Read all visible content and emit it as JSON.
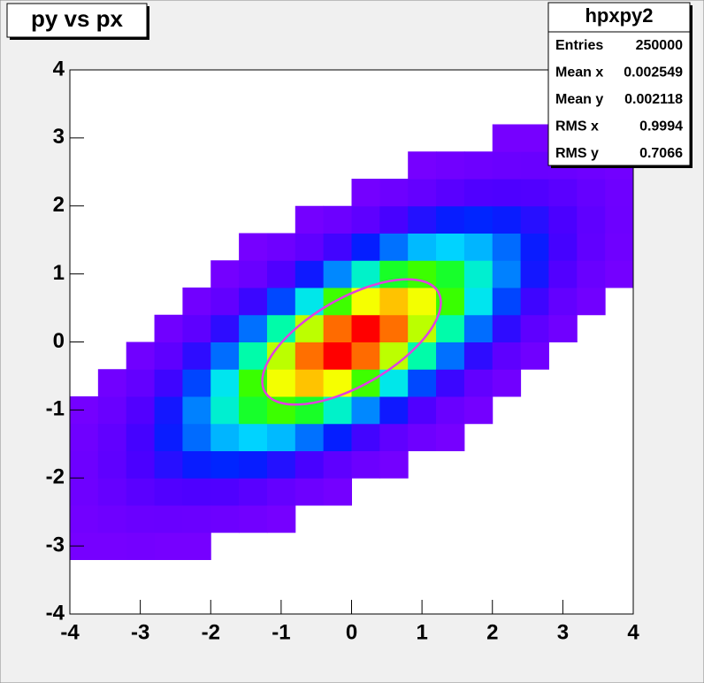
{
  "chart_data": {
    "type": "heatmap",
    "title": "py vs px",
    "xbins": [
      -4,
      -3.6,
      -3.2,
      -2.8,
      -2.4,
      -2,
      -1.6,
      -1.2,
      -0.8,
      -0.4,
      0,
      0.4,
      0.8,
      1.2,
      1.6,
      2,
      2.4,
      2.8,
      3.2,
      3.6,
      4
    ],
    "ybins": [
      -4,
      -3.6,
      -3.2,
      -2.8,
      -2.4,
      -2,
      -1.6,
      -1.2,
      -0.8,
      -0.4,
      0,
      0.4,
      0.8,
      1.2,
      1.6,
      2,
      2.4,
      2.8,
      3.2,
      3.6,
      4
    ],
    "z": [
      [
        0,
        0,
        1,
        3,
        8,
        9,
        6,
        2,
        0,
        0,
        0,
        0,
        0,
        0,
        0,
        0,
        0,
        0,
        0,
        0
      ],
      [
        0,
        0,
        1,
        8,
        24,
        38,
        32,
        15,
        4,
        0,
        0,
        0,
        0,
        0,
        0,
        0,
        0,
        0,
        0,
        0
      ],
      [
        0,
        0,
        2,
        13,
        53,
        118,
        137,
        86,
        29,
        5,
        0,
        0,
        0,
        0,
        0,
        0,
        0,
        0,
        0,
        0
      ],
      [
        0,
        0,
        1,
        16,
        88,
        263,
        421,
        361,
        164,
        40,
        5,
        0,
        0,
        0,
        0,
        0,
        0,
        0,
        0,
        0
      ],
      [
        0,
        0,
        1,
        14,
        104,
        427,
        940,
        1100,
        690,
        230,
        41,
        4,
        0,
        0,
        0,
        0,
        0,
        0,
        0,
        0
      ],
      [
        0,
        0,
        0,
        9,
        92,
        512,
        1530,
        2450,
        2100,
        952,
        232,
        30,
        2,
        0,
        0,
        0,
        0,
        0,
        0,
        0
      ],
      [
        0,
        0,
        0,
        4,
        58,
        441,
        1810,
        3980,
        4650,
        2900,
        970,
        175,
        16,
        1,
        0,
        0,
        0,
        0,
        0,
        0
      ],
      [
        0,
        0,
        0,
        1,
        26,
        282,
        1570,
        4680,
        7500,
        6420,
        2910,
        710,
        93,
        7,
        0,
        0,
        0,
        0,
        0,
        0
      ],
      [
        0,
        0,
        0,
        0,
        9,
        128,
        980,
        4010,
        8840,
        10310,
        6440,
        2160,
        390,
        36,
        2,
        0,
        0,
        0,
        0,
        0
      ],
      [
        0,
        0,
        0,
        0,
        2,
        42,
        455,
        2530,
        7560,
        12110,
        10380,
        4710,
        1150,
        150,
        10,
        0,
        0,
        0,
        0,
        0
      ],
      [
        0,
        0,
        0,
        0,
        0,
        10,
        150,
        1150,
        4710,
        10380,
        12110,
        7560,
        2530,
        455,
        42,
        2,
        0,
        0,
        0,
        0
      ],
      [
        0,
        0,
        0,
        0,
        0,
        2,
        36,
        390,
        2160,
        6440,
        10310,
        8840,
        4010,
        980,
        128,
        9,
        0,
        0,
        0,
        0
      ],
      [
        0,
        0,
        0,
        0,
        0,
        0,
        7,
        93,
        710,
        2910,
        6420,
        7500,
        4680,
        1570,
        282,
        26,
        1,
        0,
        0,
        0
      ],
      [
        0,
        0,
        0,
        0,
        0,
        0,
        1,
        16,
        175,
        970,
        2900,
        4650,
        3980,
        1810,
        441,
        58,
        4,
        0,
        0,
        0
      ],
      [
        0,
        0,
        0,
        0,
        0,
        0,
        0,
        2,
        30,
        232,
        952,
        2100,
        2450,
        1530,
        512,
        92,
        9,
        0,
        0,
        0
      ],
      [
        0,
        0,
        0,
        0,
        0,
        0,
        0,
        0,
        4,
        41,
        230,
        690,
        1100,
        940,
        427,
        104,
        14,
        1,
        0,
        0
      ],
      [
        0,
        0,
        0,
        0,
        0,
        0,
        0,
        0,
        0,
        5,
        40,
        164,
        361,
        421,
        263,
        88,
        16,
        1,
        0,
        0
      ],
      [
        0,
        0,
        0,
        0,
        0,
        0,
        0,
        0,
        0,
        0,
        5,
        29,
        86,
        137,
        118,
        53,
        13,
        2,
        0,
        0
      ],
      [
        0,
        0,
        0,
        0,
        0,
        0,
        0,
        0,
        0,
        0,
        0,
        4,
        15,
        32,
        38,
        24,
        8,
        1,
        0,
        0
      ],
      [
        0,
        0,
        0,
        0,
        0,
        0,
        0,
        0,
        0,
        0,
        0,
        0,
        2,
        6,
        9,
        8,
        3,
        1,
        0,
        0
      ]
    ],
    "palette": [
      "#7a00ff",
      "#4a00ff",
      "#0020ff",
      "#0080ff",
      "#00e0ff",
      "#00ffa0",
      "#20ff00",
      "#a0ff00",
      "#ffff00",
      "#ff9000",
      "#ff0000"
    ],
    "xlim": [
      -4,
      4
    ],
    "ylim": [
      -4,
      4
    ],
    "xticks": [
      -4,
      -3,
      -2,
      -1,
      0,
      1,
      2,
      3,
      4
    ],
    "yticks": [
      -4,
      -3,
      -2,
      -1,
      0,
      1,
      2,
      3,
      4
    ],
    "ellipse": {
      "x": 0,
      "y": 0,
      "r1": 1.42,
      "r2": 0.64,
      "theta": 30,
      "color": "#e040e0"
    },
    "stats": {
      "title": "hpxpy2",
      "rows": [
        [
          "Entries",
          250000
        ],
        [
          "Mean x",
          0.002549
        ],
        [
          "Mean y",
          0.002118
        ],
        [
          "RMS x",
          0.9994
        ],
        [
          "RMS y",
          0.7066
        ]
      ]
    }
  }
}
